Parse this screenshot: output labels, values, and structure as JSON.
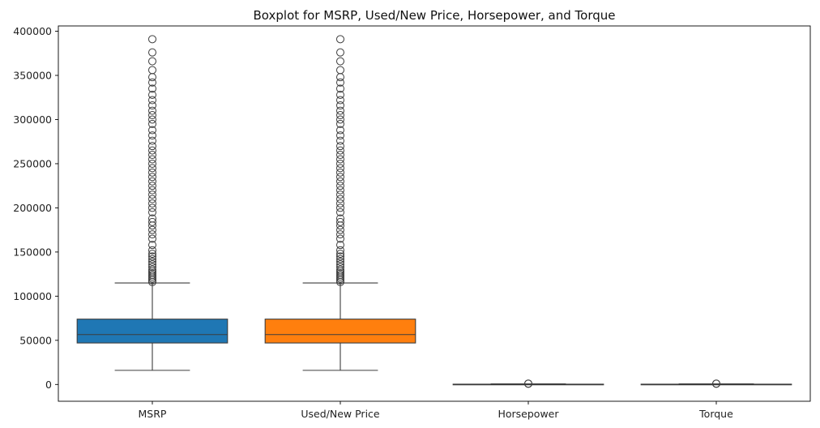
{
  "chart_data": {
    "type": "boxplot",
    "title": "Boxplot for MSRP, Used/New Price, Horsepower, and Torque",
    "xlabel": "",
    "ylabel": "",
    "ylim": [
      -19000,
      406000
    ],
    "yticks": [
      0,
      50000,
      100000,
      150000,
      200000,
      250000,
      300000,
      350000,
      400000
    ],
    "ytick_labels": [
      "0",
      "50000",
      "100000",
      "150000",
      "200000",
      "250000",
      "300000",
      "350000",
      "400000"
    ],
    "grid": false,
    "categories": [
      "MSRP",
      "Used/New Price",
      "Horsepower",
      "Torque"
    ],
    "series": [
      {
        "category": "MSRP",
        "color": "#1f77b4",
        "whisker_low": 16000,
        "q1": 47000,
        "median": 56500,
        "q3": 74000,
        "whisker_high": 115000,
        "outliers": [
          116000,
          118000,
          120000,
          122000,
          124000,
          126000,
          128000,
          130000,
          133000,
          136000,
          139000,
          142000,
          145000,
          148000,
          152000,
          158000,
          165000,
          170000,
          175000,
          180000,
          184000,
          188000,
          195000,
          200000,
          205000,
          210000,
          215000,
          220000,
          225000,
          230000,
          235000,
          240000,
          245000,
          250000,
          255000,
          260000,
          265000,
          270000,
          276000,
          282000,
          288000,
          295000,
          300000,
          305000,
          310000,
          316000,
          322000,
          328000,
          335000,
          342000,
          348000,
          356000,
          366000,
          376000,
          391000
        ]
      },
      {
        "category": "Used/New Price",
        "color": "#ff7f0e",
        "whisker_low": 16000,
        "q1": 47000,
        "median": 56500,
        "q3": 74000,
        "whisker_high": 115000,
        "outliers": [
          116000,
          118000,
          120000,
          122000,
          124000,
          126000,
          128000,
          130000,
          133000,
          136000,
          139000,
          142000,
          145000,
          148000,
          152000,
          158000,
          165000,
          170000,
          175000,
          180000,
          184000,
          188000,
          195000,
          200000,
          205000,
          210000,
          215000,
          220000,
          225000,
          230000,
          235000,
          240000,
          245000,
          250000,
          255000,
          260000,
          265000,
          270000,
          276000,
          282000,
          288000,
          295000,
          300000,
          305000,
          310000,
          316000,
          322000,
          328000,
          335000,
          342000,
          348000,
          356000,
          366000,
          376000,
          391000
        ]
      },
      {
        "category": "Horsepower",
        "color": "#2ca02c",
        "whisker_low": 0,
        "q1": 150,
        "median": 250,
        "q3": 350,
        "whisker_high": 700,
        "outliers": [
          800,
          1000
        ]
      },
      {
        "category": "Torque",
        "color": "#d62728",
        "whisker_low": 0,
        "q1": 150,
        "median": 250,
        "q3": 350,
        "whisker_high": 700,
        "outliers": [
          800,
          1000
        ]
      }
    ]
  }
}
